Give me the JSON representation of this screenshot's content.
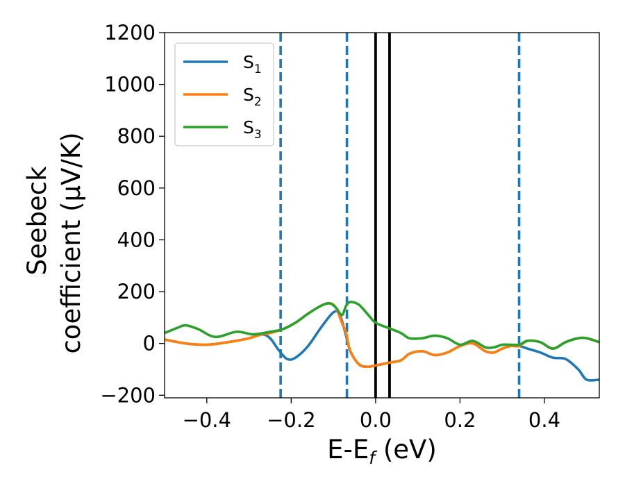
{
  "chart_data": {
    "type": "line",
    "title": "",
    "xlabel": {
      "main": "E-E",
      "sub": "f",
      "suffix": " (eV)"
    },
    "ylabel": {
      "line1": "Seebeck",
      "line2": "coefficient  (μV/K)"
    },
    "xlim": [
      -0.5,
      0.53
    ],
    "ylim": [
      -210,
      1200
    ],
    "xticks": [
      -0.4,
      -0.2,
      0.0,
      0.2,
      0.4
    ],
    "xtick_labels": [
      "−0.4",
      "−0.2",
      "0.0",
      "0.2",
      "0.4"
    ],
    "yticks": [
      -200,
      0,
      200,
      400,
      600,
      800,
      1000,
      1200
    ],
    "ytick_labels": [
      "−200",
      "0",
      "200",
      "400",
      "600",
      "800",
      "1000",
      "1200"
    ],
    "grid": false,
    "legend_position": "top-left",
    "vlines": [
      {
        "x": -0.225,
        "style": "dashed",
        "color": "#1f77b4"
      },
      {
        "x": -0.068,
        "style": "dashed",
        "color": "#1f77b4"
      },
      {
        "x": 0.0,
        "style": "solid",
        "color": "#000000"
      },
      {
        "x": 0.033,
        "style": "solid",
        "color": "#000000"
      },
      {
        "x": 0.34,
        "style": "dashed",
        "color": "#1f77b4"
      }
    ],
    "series": [
      {
        "name": "S",
        "sub": "1",
        "color": "#1f77b4",
        "x": [
          -0.5,
          -0.45,
          -0.4,
          -0.35,
          -0.3,
          -0.27,
          -0.25,
          -0.23,
          -0.21,
          -0.19,
          -0.16,
          -0.13,
          -0.1,
          -0.085,
          -0.07,
          -0.06,
          -0.04,
          -0.02,
          0.0,
          0.03,
          0.06,
          0.08,
          0.11,
          0.14,
          0.17,
          0.2,
          0.23,
          0.26,
          0.28,
          0.3,
          0.32,
          0.34,
          0.36,
          0.39,
          0.42,
          0.45,
          0.48,
          0.5,
          0.53
        ],
        "y": [
          15,
          0,
          -5,
          5,
          20,
          35,
          20,
          -25,
          -60,
          -55,
          -10,
          60,
          120,
          110,
          30,
          -30,
          -80,
          -90,
          -85,
          -75,
          -65,
          -40,
          -30,
          -45,
          -35,
          -10,
          0,
          -30,
          -35,
          -20,
          -10,
          -10,
          -20,
          -35,
          -55,
          -60,
          -100,
          -140,
          -140
        ]
      },
      {
        "name": "S",
        "sub": "2",
        "color": "#ff7f0e",
        "x": [
          -0.5,
          -0.45,
          -0.4,
          -0.35,
          -0.3,
          -0.27,
          -0.25,
          -0.22,
          -0.19,
          -0.16,
          -0.13,
          -0.11,
          -0.095,
          -0.08,
          -0.07,
          -0.06,
          -0.04,
          -0.02,
          0.0,
          0.03,
          0.06,
          0.08,
          0.11,
          0.14,
          0.17,
          0.2,
          0.23,
          0.26,
          0.28,
          0.3,
          0.32,
          0.34,
          0.36,
          0.39,
          0.42,
          0.45,
          0.48,
          0.5,
          0.53
        ],
        "y": [
          15,
          0,
          -5,
          5,
          20,
          35,
          40,
          55,
          80,
          115,
          145,
          155,
          140,
          80,
          40,
          -30,
          -80,
          -90,
          -85,
          -75,
          -65,
          -40,
          -30,
          -45,
          -35,
          -10,
          0,
          -30,
          -35,
          -20,
          -10,
          -10,
          10,
          5,
          -20,
          5,
          20,
          20,
          5
        ]
      },
      {
        "name": "S",
        "sub": "3",
        "color": "#2ca02c",
        "x": [
          -0.5,
          -0.47,
          -0.45,
          -0.42,
          -0.38,
          -0.33,
          -0.29,
          -0.25,
          -0.22,
          -0.19,
          -0.16,
          -0.13,
          -0.11,
          -0.095,
          -0.08,
          -0.07,
          -0.06,
          -0.04,
          -0.02,
          0.0,
          0.03,
          0.06,
          0.08,
          0.11,
          0.14,
          0.17,
          0.2,
          0.23,
          0.26,
          0.28,
          0.3,
          0.32,
          0.34,
          0.36,
          0.39,
          0.42,
          0.45,
          0.48,
          0.5,
          0.53
        ],
        "y": [
          40,
          60,
          70,
          55,
          25,
          45,
          35,
          45,
          55,
          80,
          115,
          145,
          155,
          140,
          110,
          145,
          160,
          150,
          115,
          80,
          60,
          40,
          20,
          20,
          30,
          20,
          -5,
          10,
          -15,
          -15,
          -5,
          -5,
          -5,
          10,
          5,
          -20,
          5,
          20,
          20,
          5
        ]
      }
    ]
  }
}
